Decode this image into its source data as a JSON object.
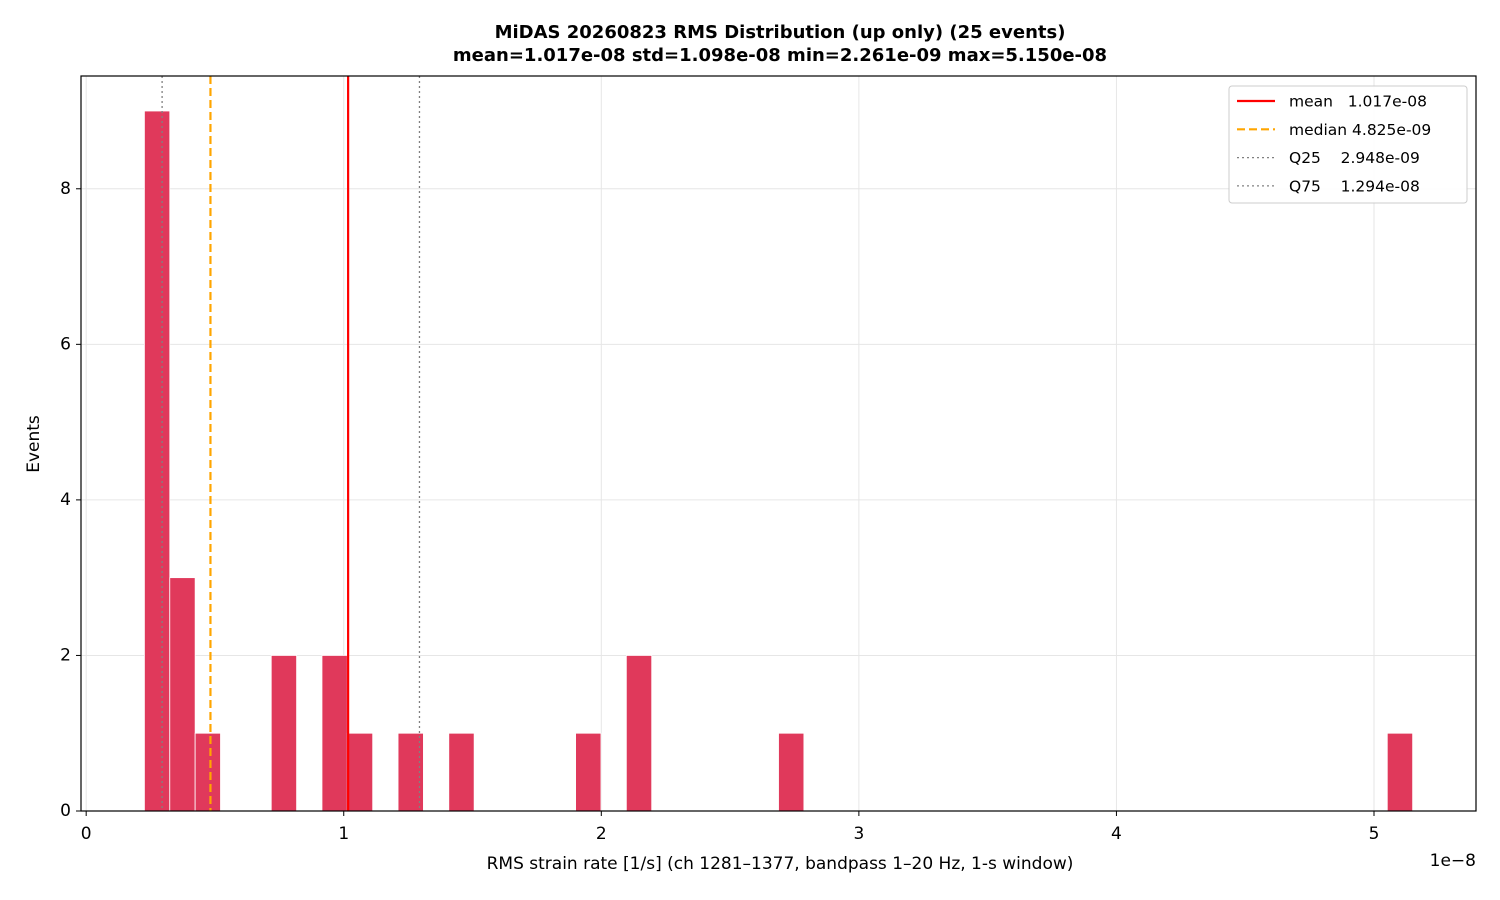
{
  "chart_data": {
    "type": "histogram",
    "title": "MiDAS 20260823  RMS Distribution  (up only)  (25 events)",
    "subtitle": "mean=1.017e-08  std=1.098e-08  min=2.261e-09  max=5.150e-08",
    "x_label": "RMS strain rate [1/s]  (ch 1281–1377, bandpass 1–20 Hz, 1-s window)",
    "x_offset_label": "1e−8",
    "y_label": "Events",
    "color": "#e0395b",
    "bins": [
      2.261e-09,
      3.2458e-09,
      4.2306e-09,
      5.2153e-09,
      6.2001e-09,
      7.1849e-09,
      8.1697e-09,
      9.1545e-09,
      1.01392e-08,
      1.1124e-08,
      1.21088e-08,
      1.30936e-08,
      1.40784e-08,
      1.50631e-08,
      1.60479e-08,
      1.70327e-08,
      1.80175e-08,
      1.90023e-08,
      1.9987e-08,
      2.09718e-08,
      2.19566e-08,
      2.29414e-08,
      2.39262e-08,
      2.49109e-08,
      2.58957e-08,
      2.68805e-08,
      2.78653e-08,
      2.88501e-08,
      2.98348e-08,
      3.08196e-08,
      3.18044e-08,
      3.27892e-08,
      3.3774e-08,
      3.47587e-08,
      3.57435e-08,
      3.67283e-08,
      3.77131e-08,
      3.86979e-08,
      3.96826e-08,
      4.06674e-08,
      4.16522e-08,
      4.2637e-08,
      4.36218e-08,
      4.46065e-08,
      4.55913e-08,
      4.65761e-08,
      4.75609e-08,
      4.85457e-08,
      4.95304e-08,
      5.05152e-08,
      5.15e-08
    ],
    "values": [
      9,
      3,
      1,
      0,
      0,
      2,
      0,
      2,
      1,
      0,
      1,
      0,
      1,
      0,
      0,
      0,
      0,
      1,
      0,
      2,
      0,
      0,
      0,
      0,
      0,
      1,
      0,
      0,
      0,
      0,
      0,
      0,
      0,
      0,
      0,
      0,
      0,
      0,
      0,
      0,
      0,
      0,
      0,
      0,
      0,
      0,
      0,
      0,
      0,
      1
    ],
    "xlim": [
      -2.01e-10,
      5.396e-08
    ],
    "ylim": [
      0,
      9.45
    ],
    "xticks": [
      0,
      {
        "value": 1e-08,
        "label": "1"
      },
      {
        "value": 2e-08,
        "label": "2"
      },
      {
        "value": 3e-08,
        "label": "3"
      },
      {
        "value": 4e-08,
        "label": "4"
      },
      {
        "value": 5e-08,
        "label": "5"
      }
    ],
    "yticks": [
      0,
      2,
      4,
      6,
      8
    ],
    "grid": true,
    "legend_position": "upper right",
    "reference_lines": [
      {
        "label": "mean   1.017e-08",
        "value": 1.017e-08,
        "color": "#ff0000",
        "style": "solid"
      },
      {
        "label": "median 4.825e-09",
        "value": 4.825e-09,
        "color": "#ffa500",
        "style": "dashed"
      },
      {
        "label": "Q25    2.948e-09",
        "value": 2.948e-09,
        "color": "#808080",
        "style": "dotted"
      },
      {
        "label": "Q75    1.294e-08",
        "value": 1.294e-08,
        "color": "#808080",
        "style": "dotted"
      }
    ]
  }
}
